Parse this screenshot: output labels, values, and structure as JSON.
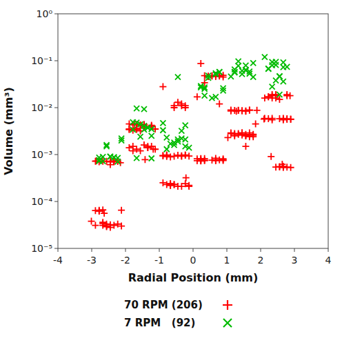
{
  "chart_data": {
    "type": "scatter",
    "xlabel": "Radial Position (mm)",
    "ylabel": "Volume (mm³)",
    "xlim": [
      -4,
      4
    ],
    "ylim": [
      1e-05,
      1
    ],
    "log": "y",
    "grid": false,
    "legend": "bottom",
    "xticks": [
      -4,
      -3,
      -2,
      -1,
      0,
      1,
      2,
      3,
      4
    ],
    "yticks": [
      {
        "value": 1e-05,
        "label": "10⁻⁵"
      },
      {
        "value": 0.0001,
        "label": "10⁻⁴"
      },
      {
        "value": 0.001,
        "label": "10⁻³"
      },
      {
        "value": 0.01,
        "label": "10⁻²"
      },
      {
        "value": 0.1,
        "label": "10⁻¹"
      },
      {
        "value": 1,
        "label": "10⁰"
      }
    ],
    "series": [
      {
        "name": "70 RPM (206)",
        "color": "#ff0000",
        "marker": "plus",
        "x": [
          -0.21,
          2.87,
          -2.63,
          1.03,
          -0.67,
          0.78,
          1.85,
          -1.42,
          0.34,
          -2.15,
          1.56,
          -0.89,
          2.31,
          -1.73,
          0.12,
          2.64,
          -3.01,
          1.28,
          -0.45,
          2.1,
          -1.18,
          0.67,
          -2.87,
          1.45,
          -0.34,
          2.78,
          -1.56,
          0.23,
          -2.45,
          1.67,
          -0.78,
          2.34,
          -1.23,
          0.89,
          -2.67,
          1.12,
          -0.56,
          2.56,
          -1.89,
          0.45,
          -2.34,
          1.78,
          -0.23,
          2.89,
          -1.67,
          0.34,
          -2.78,
          1.23,
          -0.89,
          2.45,
          -1.45,
          0.67,
          -2.56,
          1.89,
          -0.12,
          2.67,
          -1.34,
          0.56,
          -2.89,
          1.56,
          -0.45,
          2.23,
          -1.78,
          0.23,
          -2.12,
          1.45,
          -0.67,
          2.78,
          -1.56,
          0.89,
          -2.45,
          1.34,
          -0.23,
          2.56,
          -1.89,
          0.12,
          -2.78,
          1.67,
          -0.56,
          2.34,
          -1.23,
          0.78,
          -2.67,
          1.12,
          -0.34,
          2.89,
          -1.45,
          0.45,
          -2.34,
          1.78,
          -0.78,
          2.12,
          -1.67,
          0.23,
          -2.56,
          1.34,
          -0.89,
          2.67,
          -1.12,
          0.56,
          -2.23,
          1.56,
          -0.34,
          2.45,
          -1.78,
          0.67,
          -2.89,
          1.23,
          -0.12,
          2.78,
          -1.56,
          0.34,
          -2.34,
          1.67,
          -0.67,
          2.23,
          -1.34,
          0.78,
          -2.67,
          1.45,
          -0.23,
          2.56,
          -1.89,
          0.12,
          -2.45,
          1.56,
          -0.56,
          2.34,
          -1.23,
          0.89,
          -2.78,
          1.12,
          -0.45,
          2.67,
          -1.67,
          0.23,
          -2.12,
          1.78,
          -0.78,
          2.45,
          -1.45,
          0.56,
          -2.56,
          1.34,
          -0.23,
          2.89,
          -1.78,
          0.67,
          -2.34,
          1.23,
          -0.89,
          2.23,
          -1.56,
          0.34,
          -2.67,
          1.45,
          -0.12,
          2.78,
          -1.34,
          0.78,
          -2.45,
          1.67,
          -0.56,
          2.56,
          -1.89,
          0.23,
          -2.78,
          1.12,
          -0.34,
          2.34,
          -1.23,
          0.89,
          -2.23,
          1.56,
          -0.67,
          2.67,
          -1.67,
          0.45,
          -2.56,
          1.34,
          -0.23,
          2.45,
          -1.45,
          0.67,
          -2.89,
          1.23,
          -0.78,
          2.12,
          -1.78,
          0.34,
          -2.34,
          1.56,
          -0.56,
          2.67,
          -1.12,
          0.89,
          -2.67,
          1.45,
          -0.34,
          2.78,
          -1.56,
          0.23,
          -2.45,
          1.67,
          -0.67,
          2.34
        ],
        "values": [
          0.00032,
          0.018,
          5.6e-05,
          0.0023,
          0.00089,
          0.012,
          0.0045,
          0.00078,
          0.034,
          0.00067,
          0.0015,
          0.028,
          0.00091,
          0.0043,
          0.017,
          0.00062,
          3.8e-05,
          0.0084,
          0.00021,
          0.0057,
          0.0013,
          0.046,
          0.00073,
          0.0029,
          0.011,
          0.00054,
          0.0032,
          0.087,
          0.00061,
          0.0024,
          0.00098,
          0.016,
          0.0042,
          0.00075,
          3.1e-05,
          0.0089,
          0.00023,
          0.0058,
          0.0014,
          0.047,
          0.00071,
          0.0026,
          0.01,
          0.00053,
          0.0034,
          0.00082,
          6.5e-05,
          0.0027,
          0.00094,
          0.018,
          0.0041,
          0.00076,
          3.3e-05,
          0.0088,
          0.00022,
          0.0059,
          0.0015,
          0.048,
          0.00072,
          0.0025,
          0.00097,
          0.017,
          0.0043,
          0.00074,
          3e-05,
          0.0086,
          0.00024,
          0.0056,
          0.0012,
          0.049,
          0.0007,
          0.0028,
          0.011,
          0.00055,
          0.0035,
          0.00081,
          6.3e-05,
          0.0029,
          0.00092,
          0.019,
          0.004,
          0.00077,
          3.6e-05,
          0.0085,
          0.00021,
          0.0057,
          0.0016,
          0.046,
          0.00073,
          0.0024,
          0.00096,
          0.016,
          0.0044,
          0.00073,
          2.9e-05,
          0.0087,
          0.00025,
          0.0055,
          0.0013,
          0.047,
          0.00071,
          0.0027,
          0.012,
          0.00054,
          0.0033,
          0.00083,
          6.4e-05,
          0.0028,
          0.00093,
          0.018,
          0.0042,
          0.00075,
          3.1e-05,
          0.0089,
          0.00022,
          0.0058,
          0.0014,
          0.048,
          0.00072,
          0.0026,
          0.00098,
          0.015,
          0.0045,
          0.00074,
          3.2e-05,
          0.0084,
          0.00023,
          0.0059,
          0.0015,
          0.045,
          0.0007,
          0.0029,
          0.013,
          0.00053,
          0.0036,
          0.0008,
          6.5e-05,
          0.0027,
          0.00091,
          0.019,
          0.0041,
          0.00076,
          3e-05,
          0.0088,
          0.00024,
          0.0056,
          0.0012,
          0.049,
          0.00073,
          0.0025,
          0.00095,
          0.017,
          0.0043,
          0.00075,
          3.4e-05,
          0.0086,
          0.00021,
          0.0058,
          0.0014,
          0.047,
          0.00071,
          0.0026,
          0.011,
          0.00055,
          0.0034,
          0.00082,
          6.2e-05,
          0.0028,
          0.00094,
          0.018,
          0.004,
          0.00077,
          3.3e-05,
          0.0085,
          0.00022,
          0.0057,
          0.0013,
          0.046,
          0.00072,
          0.0027,
          0.00097,
          0.016,
          0.0044,
          0.00074,
          3.1e-05,
          0.0087,
          0.00023,
          0.0059,
          0.0015,
          0.048,
          0.0007,
          0.0025,
          0.01,
          0.00056,
          0.0035,
          0.00081,
          6.6e-05,
          0.0029,
          0.00092,
          0.019,
          0.0042,
          0.00076,
          2.8e-05,
          0.0088,
          0.00024,
          0.0055
        ]
      },
      {
        "name": "7 RPM   (92)",
        "color": "#00bb00",
        "marker": "cross",
        "x": [
          -0.45,
          2.12,
          -1.78,
          0.89,
          -2.34,
          1.23,
          -0.56,
          2.67,
          -1.45,
          0.34,
          -2.78,
          1.56,
          -0.23,
          2.45,
          -1.67,
          0.67,
          -2.12,
          1.34,
          -0.89,
          2.56,
          -1.23,
          0.45,
          -2.56,
          1.78,
          -0.34,
          2.23,
          -1.56,
          0.78,
          -2.45,
          1.12,
          -0.67,
          2.78,
          -1.34,
          0.23,
          -2.23,
          1.67,
          -0.45,
          2.34,
          -1.78,
          0.56,
          -2.67,
          1.45,
          -0.12,
          2.56,
          -1.23,
          0.89,
          -2.34,
          1.67,
          -0.78,
          2.45,
          -1.56,
          0.34,
          -2.78,
          1.23,
          -0.45,
          2.67,
          -1.45,
          0.67,
          -2.12,
          1.56,
          -0.23,
          2.34,
          -1.67,
          0.45,
          -2.56,
          1.34,
          -0.89,
          2.23,
          -1.23,
          0.78,
          -2.45,
          1.78,
          -0.56,
          2.67,
          -1.34,
          0.23,
          -2.78,
          1.45,
          -0.34,
          2.45,
          -1.67,
          0.67,
          -2.23,
          1.56,
          -0.78,
          2.56,
          -1.45,
          0.34,
          -2.67,
          1.23,
          -0.23,
          2.34
        ],
        "values": [
          0.045,
          0.12,
          0.0034,
          0.023,
          0.00087,
          0.056,
          0.0018,
          0.092,
          0.0041,
          0.027,
          0.00073,
          0.064,
          0.0015,
          0.038,
          0.0096,
          0.051,
          0.0022,
          0.078,
          0.0047,
          0.019,
          0.00083,
          0.043,
          0.0016,
          0.089,
          0.0032,
          0.067,
          0.0024,
          0.058,
          0.00091,
          0.046,
          0.0017,
          0.074,
          0.0038,
          0.029,
          0.00085,
          0.053,
          0.0021,
          0.094,
          0.0049,
          0.016,
          0.00072,
          0.061,
          0.0014,
          0.047,
          0.0035,
          0.026,
          0.00088,
          0.059,
          0.0023,
          0.081,
          0.0044,
          0.018,
          0.00076,
          0.065,
          0.0019,
          0.036,
          0.0093,
          0.054,
          0.002,
          0.079,
          0.0042,
          0.028,
          0.00084,
          0.048,
          0.0015,
          0.097,
          0.0033,
          0.068,
          0.0025,
          0.057,
          0.0009,
          0.045,
          0.0016,
          0.073,
          0.0037,
          0.027,
          0.00086,
          0.052,
          0.0022,
          0.095,
          0.0048,
          0.017,
          0.00071,
          0.062,
          0.0013,
          0.046,
          0.0034,
          0.025,
          0.00089,
          0.058,
          0.0021,
          0.08
        ]
      }
    ]
  }
}
